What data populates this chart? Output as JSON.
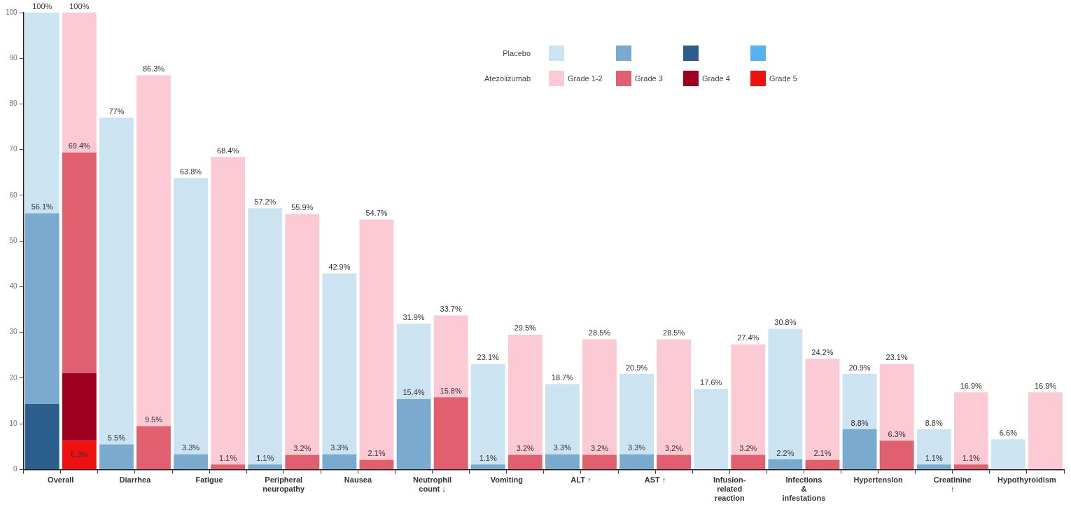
{
  "chart_data": {
    "type": "bar",
    "stacked": true,
    "categories": [
      "Overall",
      null,
      "Diarrhea",
      null,
      "Fatigue",
      null,
      "Peripheral neuropathy",
      null,
      "Nausea",
      null,
      "Neutrophil count ↓",
      null,
      "Vomiting",
      null,
      "ALT ↑",
      null,
      "AST ↑",
      null,
      "Infusion-related reaction",
      null,
      "Infections & infestations",
      null,
      "Hypertension",
      null,
      "Creatinine ↑",
      null,
      "Hypothyroidism",
      null
    ],
    "series": [
      {
        "name": "Grade 5",
        "colors": [
          "#55b4f0",
          "#f01010",
          "#55b4f0",
          "#f01010",
          "#55b4f0",
          "#f01010",
          "#55b4f0",
          "#f01010",
          "#55b4f0",
          "#f01010",
          "#55b4f0",
          "#f01010",
          "#55b4f0",
          "#f01010",
          "#55b4f0",
          "#f01010",
          "#55b4f0",
          "#f01010",
          "#55b4f0",
          "#f01010",
          "#55b4f0",
          "#f01010",
          "#55b4f0",
          "#f01010",
          "#55b4f0",
          "#f01010",
          "#55b4f0",
          "#f01010"
        ],
        "values": [
          0,
          6.3,
          0,
          0,
          0,
          0,
          0,
          0,
          0,
          0,
          0,
          0,
          0,
          0,
          0,
          0,
          0,
          0,
          0,
          0,
          0,
          0,
          0,
          0,
          0,
          0,
          0,
          0
        ],
        "value_labels": [
          null,
          "6.3%",
          null,
          null,
          null,
          null,
          null,
          null,
          null,
          null,
          null,
          null,
          null,
          null,
          null,
          null,
          null,
          null,
          null,
          null,
          null,
          null,
          null,
          null,
          null,
          null,
          null,
          null
        ]
      },
      {
        "name": "Grade 4",
        "colors": [
          "#2b5e8c",
          "#a00020",
          "#2b5e8c",
          "#a00020",
          "#2b5e8c",
          "#a00020",
          "#2b5e8c",
          "#a00020",
          "#2b5e8c",
          "#a00020",
          "#2b5e8c",
          "#a00020",
          "#2b5e8c",
          "#a00020",
          "#2b5e8c",
          "#a00020",
          "#2b5e8c",
          "#a00020",
          "#2b5e8c",
          "#a00020",
          "#2b5e8c",
          "#a00020",
          "#2b5e8c",
          "#a00020",
          "#2b5e8c",
          "#a00020",
          "#2b5e8c",
          "#a00020"
        ],
        "values": [
          14.3,
          14.8,
          0,
          0,
          0,
          0,
          0,
          0,
          0,
          0,
          0,
          0,
          0,
          0,
          0,
          0,
          0,
          0,
          0,
          0,
          0,
          0,
          0,
          0,
          0,
          0,
          0,
          0
        ]
      },
      {
        "name": "Grade 3",
        "colors": [
          "#7aabcf",
          "#e06070",
          "#7aabcf",
          "#e06070",
          "#7aabcf",
          "#e06070",
          "#7aabcf",
          "#e06070",
          "#7aabcf",
          "#e06070",
          "#7aabcf",
          "#e06070",
          "#7aabcf",
          "#e06070",
          "#7aabcf",
          "#e06070",
          "#7aabcf",
          "#e06070",
          "#7aabcf",
          "#e06070",
          "#7aabcf",
          "#e06070",
          "#7aabcf",
          "#e06070",
          "#7aabcf",
          "#e06070",
          "#7aabcf",
          "#e06070"
        ],
        "values": [
          41.8,
          48.3,
          5.5,
          9.5,
          3.3,
          1.1,
          1.1,
          3.2,
          3.3,
          2.1,
          15.4,
          15.8,
          1.1,
          3.2,
          3.3,
          3.2,
          3.3,
          3.2,
          0,
          3.2,
          2.2,
          2.1,
          8.8,
          6.3,
          1.1,
          1.1,
          0,
          0
        ],
        "value_labels": [
          null,
          null,
          "5.5%",
          "9.5%",
          "3.3%",
          "1.1%",
          "1.1%",
          "3.2%",
          "3.3%",
          "2.1%",
          "15.4%",
          "15.8%",
          "1.1%",
          "3.2%",
          "3.3%",
          "3.2%",
          "3.3%",
          "3.2%",
          null,
          "3.2%",
          "2.2%",
          "2.1%",
          "8.8%",
          "6.3%",
          "1.1%",
          "1.1%",
          null,
          null
        ]
      },
      {
        "name": "Grade 1-2",
        "colors": [
          "#cce3f2",
          "#fccad5",
          "#cce3f2",
          "#fccad5",
          "#cce3f2",
          "#fccad5",
          "#cce3f2",
          "#fccad5",
          "#cce3f2",
          "#fccad5",
          "#cce3f2",
          "#fccad5",
          "#cce3f2",
          "#fccad5",
          "#cce3f2",
          "#fccad5",
          "#cce3f2",
          "#fccad5",
          "#cce3f2",
          "#fccad5",
          "#cce3f2",
          "#fccad5",
          "#cce3f2",
          "#fccad5",
          "#cce3f2",
          "#fccad5",
          "#cce3f2",
          "#fccad5"
        ],
        "values": [
          43.9,
          30.6,
          71.5,
          76.8,
          60.5,
          67.3,
          56.1,
          52.7,
          39.6,
          52.6,
          16.5,
          17.9,
          22.0,
          26.3,
          15.4,
          25.3,
          17.6,
          25.3,
          17.6,
          24.2,
          28.6,
          22.1,
          12.1,
          16.8,
          7.7,
          15.8,
          6.6,
          16.9
        ]
      }
    ],
    "totals": [
      "100%",
      "100%",
      "77%",
      "86.3%",
      "63.8%",
      "68.4%",
      "57.2%",
      "55.9%",
      "42.9%",
      "54.7%",
      "31.9%",
      "33.7%",
      "23.1%",
      "29.5%",
      "18.7%",
      "28.5%",
      "20.9%",
      "28.5%",
      "17.6%",
      "27.4%",
      "30.8%",
      "24.2%",
      "20.9%",
      "23.1%",
      "8.8%",
      "16.9%",
      "6.6%",
      "16.9%"
    ],
    "annotations": [
      "Placebo",
      "Atezolizumab",
      {
        "text": "56.1%",
        "x": "Overall",
        "y": 56.1
      },
      {
        "text": "69.4%",
        "y": 69.4
      }
    ],
    "ylim": [
      0,
      100
    ],
    "yticks": [
      0,
      10,
      20,
      30,
      40,
      50,
      60,
      70,
      80,
      90,
      100
    ],
    "grid": false,
    "legend": "top right"
  }
}
